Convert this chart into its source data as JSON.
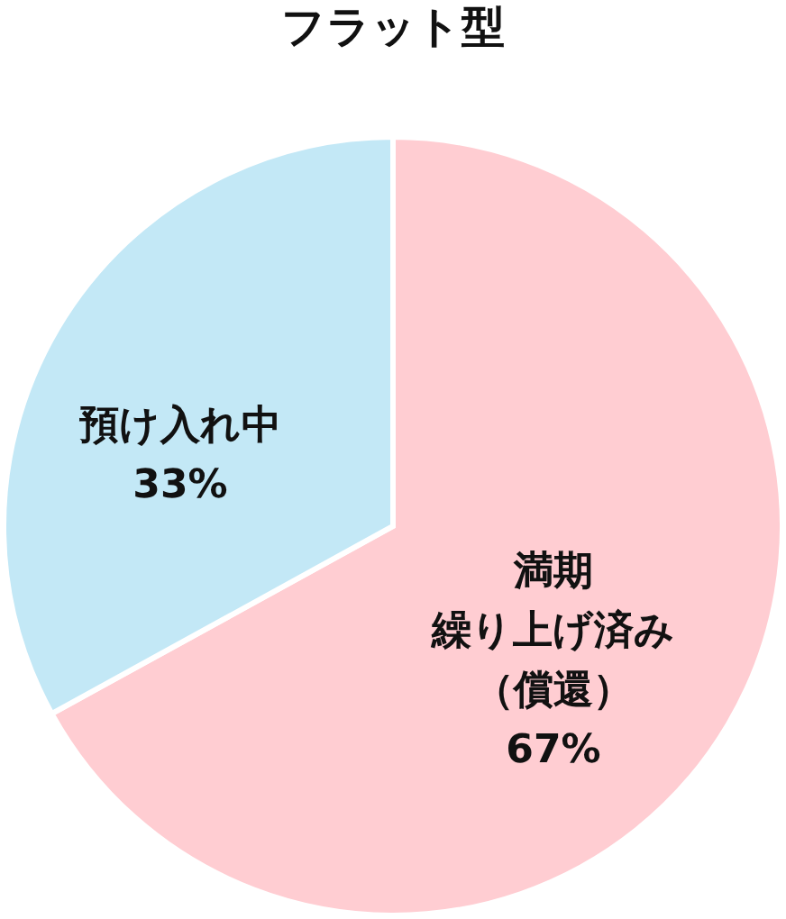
{
  "chart_data": {
    "type": "pie",
    "title": "フラット型",
    "categories": [
      "満期繰り上げ済み（償還）",
      "預け入れ中"
    ],
    "values": [
      67,
      33
    ],
    "colors": [
      "#ffcdd2",
      "#c3e8f6"
    ],
    "value_labels": [
      "67%",
      "33%"
    ]
  }
}
